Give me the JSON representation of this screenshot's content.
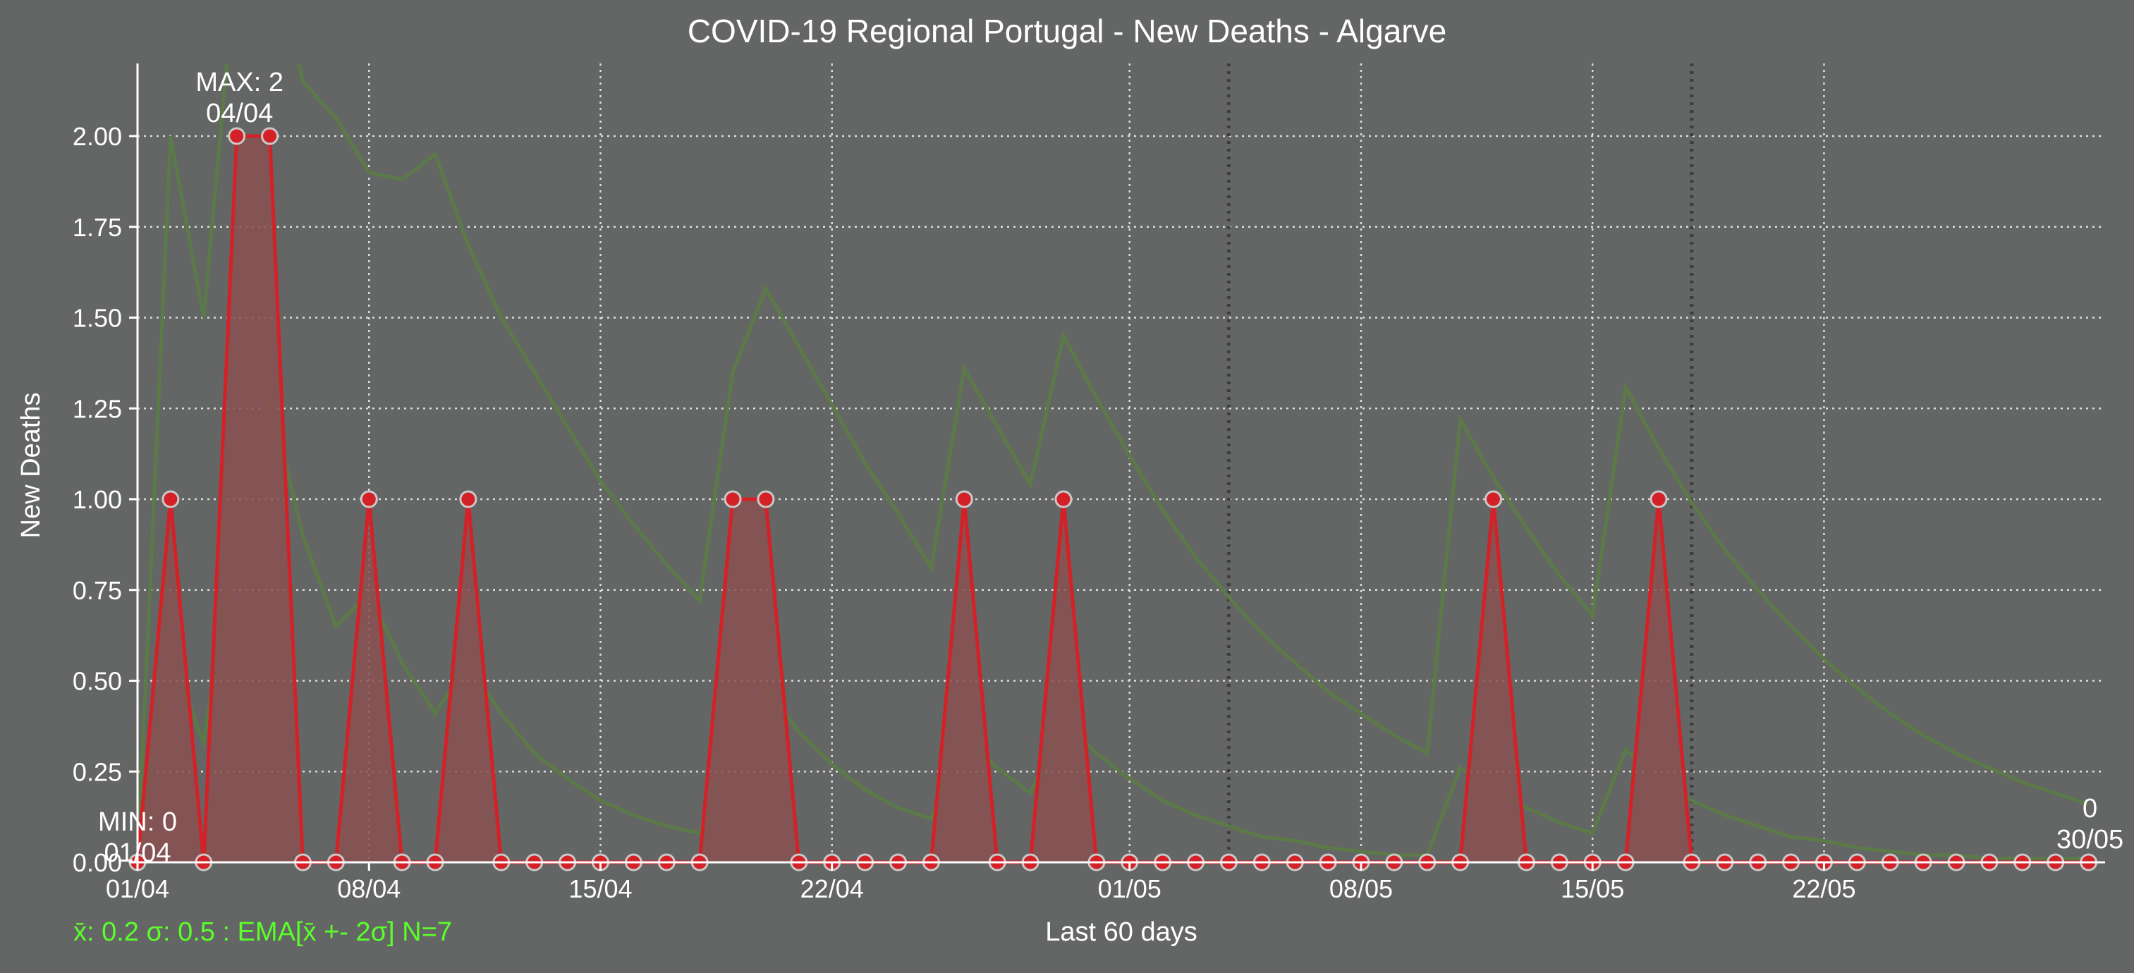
{
  "chart_data": {
    "type": "line",
    "title": "COVID-19 Regional Portugal - New Deaths - Algarve",
    "xlabel": "Last 60 days",
    "ylabel": "New Deaths",
    "footer": "x̄: 0.2 σ: 0.5 : EMA[x̄ +- 2σ] N=7",
    "ylim": [
      0,
      2.2
    ],
    "xlim": [
      0,
      59.5
    ],
    "yticks": [
      {
        "value": 0,
        "label": "0.00"
      },
      {
        "value": 0.25,
        "label": "0.25"
      },
      {
        "value": 0.5,
        "label": "0.50"
      },
      {
        "value": 0.75,
        "label": "0.75"
      },
      {
        "value": 1.0,
        "label": "1.00"
      },
      {
        "value": 1.25,
        "label": "1.25"
      },
      {
        "value": 1.5,
        "label": "1.50"
      },
      {
        "value": 1.75,
        "label": "1.75"
      },
      {
        "value": 2.0,
        "label": "2.00"
      }
    ],
    "xticks": [
      {
        "index": 0,
        "label": "01/04"
      },
      {
        "index": 7,
        "label": "08/04"
      },
      {
        "index": 14,
        "label": "15/04"
      },
      {
        "index": 21,
        "label": "22/04"
      },
      {
        "index": 30,
        "label": "01/05"
      },
      {
        "index": 37,
        "label": "08/05"
      },
      {
        "index": 44,
        "label": "15/05"
      },
      {
        "index": 51,
        "label": "22/05"
      }
    ],
    "week_lines": [
      33,
      47
    ],
    "series": [
      {
        "values": [
          0,
          1,
          0,
          2,
          2,
          0,
          0,
          1,
          0,
          0,
          1,
          0,
          0,
          0,
          0,
          0,
          0,
          0,
          1,
          1,
          0,
          0,
          0,
          0,
          0,
          1,
          0,
          0,
          1,
          0,
          0,
          0,
          0,
          0,
          0,
          0,
          0,
          0,
          0,
          0,
          0,
          1,
          0,
          0,
          0,
          0,
          1,
          0,
          0,
          0,
          0,
          0,
          0,
          0,
          0,
          0,
          0,
          0,
          0,
          0
        ]
      }
    ],
    "ema_upper": [
      0.0,
      2.0,
      1.5,
      2.5,
      2.55,
      2.15,
      2.05,
      1.9,
      1.88,
      1.95,
      1.7,
      1.5,
      1.35,
      1.2,
      1.05,
      0.93,
      0.82,
      0.72,
      1.35,
      1.58,
      1.42,
      1.26,
      1.1,
      0.96,
      0.81,
      1.36,
      1.2,
      1.04,
      1.45,
      1.28,
      1.12,
      0.97,
      0.84,
      0.73,
      0.63,
      0.55,
      0.47,
      0.41,
      0.35,
      0.3,
      1.22,
      1.06,
      0.92,
      0.79,
      0.68,
      1.31,
      1.14,
      0.99,
      0.86,
      0.75,
      0.65,
      0.56,
      0.48,
      0.41,
      0.35,
      0.3,
      0.26,
      0.22,
      0.19,
      0.16
    ],
    "ema_mean": [
      0.0,
      0.57,
      0.33,
      0.93,
      1.28,
      0.9,
      0.65,
      0.74,
      0.55,
      0.41,
      0.55,
      0.41,
      0.3,
      0.23,
      0.17,
      0.13,
      0.1,
      0.08,
      0.3,
      0.48,
      0.36,
      0.27,
      0.2,
      0.15,
      0.12,
      0.34,
      0.26,
      0.19,
      0.39,
      0.3,
      0.23,
      0.17,
      0.13,
      0.1,
      0.07,
      0.06,
      0.04,
      0.03,
      0.02,
      0.02,
      0.26,
      0.2,
      0.15,
      0.11,
      0.08,
      0.31,
      0.23,
      0.17,
      0.13,
      0.1,
      0.07,
      0.06,
      0.04,
      0.03,
      0.02,
      0.02,
      0.01,
      0.01,
      0.01,
      0.01
    ],
    "annotations": {
      "max": {
        "label": "MAX: 2",
        "date": "04/04",
        "index": 3,
        "value": 2
      },
      "min": {
        "label": "MIN: 0",
        "date": "01/04",
        "index": 0,
        "value": 0
      },
      "last": {
        "label": "0",
        "date": "30/05",
        "index": 59,
        "value": 0
      }
    },
    "colors": {
      "background": "#646665",
      "line": "#d42127",
      "fill": "#8a5050",
      "marker_edge": "#c9c9c9",
      "ema": "#5b7a48",
      "text": "#ffffff",
      "footer": "#5aff2a",
      "grid": "#dddddd",
      "week_line": "#3d3d3d"
    },
    "grid": true
  }
}
